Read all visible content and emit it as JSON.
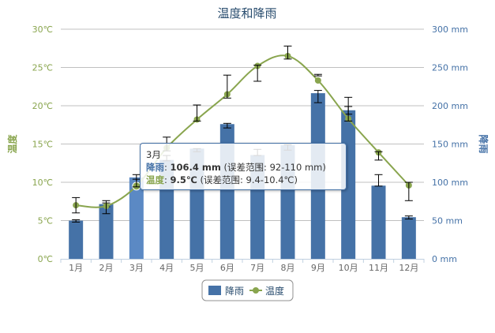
{
  "chart_data": {
    "type": "bar+line",
    "title": "温度和降雨",
    "categories": [
      "1月",
      "2月",
      "3月",
      "4月",
      "5月",
      "6月",
      "7月",
      "8月",
      "9月",
      "10月",
      "11月",
      "12月"
    ],
    "series": [
      {
        "name": "降雨",
        "type": "column",
        "axis": "right",
        "unit": "mm",
        "color": "#4572A7",
        "values": [
          49.9,
          71.5,
          106.4,
          129.2,
          144.0,
          176.0,
          135.6,
          148.5,
          216.4,
          194.1,
          95.6,
          54.4
        ],
        "errors": [
          [
            48,
            51
          ],
          [
            68,
            73
          ],
          [
            92,
            110
          ],
          [
            128,
            135
          ],
          [
            140,
            144
          ],
          [
            171,
            177
          ],
          [
            135,
            143
          ],
          [
            142,
            149
          ],
          [
            204,
            220
          ],
          [
            189,
            199
          ],
          [
            95,
            110
          ],
          [
            52,
            56
          ]
        ]
      },
      {
        "name": "温度",
        "type": "spline",
        "axis": "left",
        "unit": "℃",
        "color": "#89A54E",
        "values": [
          7.0,
          6.9,
          9.5,
          14.5,
          18.2,
          21.5,
          25.2,
          26.5,
          23.3,
          18.3,
          13.9,
          9.6
        ],
        "errors": [
          [
            6,
            8
          ],
          [
            5.9,
            7.6
          ],
          [
            9.4,
            10.4
          ],
          [
            14.1,
            15.9
          ],
          [
            18.0,
            20.1
          ],
          [
            21.0,
            24.0
          ],
          [
            23.2,
            25.3
          ],
          [
            26.1,
            27.8
          ],
          [
            23.9,
            24.1
          ],
          [
            18.0,
            21.1
          ],
          [
            12.9,
            14.0
          ],
          [
            7.6,
            10.0
          ]
        ]
      }
    ],
    "y_left": {
      "label": "温度",
      "range": [
        0,
        30
      ],
      "ticks": [
        "0℃",
        "5℃",
        "10℃",
        "15℃",
        "20℃",
        "25℃",
        "30℃"
      ]
    },
    "y_right": {
      "label": "降雨",
      "range": [
        0,
        300
      ],
      "ticks": [
        "0 mm",
        "50 mm",
        "100 mm",
        "150 mm",
        "200 mm",
        "250 mm",
        "300 mm"
      ]
    },
    "grid": true,
    "legend": {
      "placement": "bottom-center",
      "items": [
        "降雨",
        "温度"
      ]
    }
  },
  "tooltip": {
    "header": "3月",
    "rain_label": "降雨",
    "rain_value": "106.4 mm",
    "rain_range": "(误差范围: 92-110 mm)",
    "temp_label": "温度",
    "temp_value": "9.5℃",
    "temp_range": "(误差范围: 9.4-10.4℃)"
  }
}
